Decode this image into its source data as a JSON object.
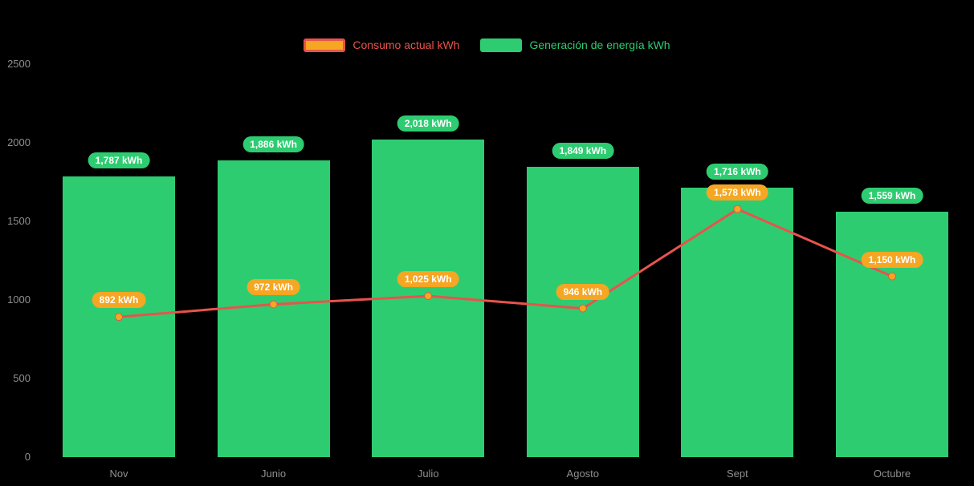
{
  "chart_data": {
    "type": "bar+line",
    "title": "",
    "categories": [
      "Nov",
      "Junio",
      "Julio",
      "Agosto",
      "Sept",
      "Octubre"
    ],
    "series": [
      {
        "name": "Consumo actual kWh",
        "type": "line",
        "values": [
          892,
          972,
          1025,
          946,
          1578,
          1150
        ],
        "labels": [
          "892 kWh",
          "972 kWh",
          "1,025 kWh",
          "946 kWh",
          "1,578 kWh",
          "1,150 kWh"
        ],
        "color": "#e8534b",
        "point_color": "#f5a623",
        "label_bg": "#f5a623",
        "label_text_color": "#ffffff",
        "swatch_fill": "#f5a623",
        "swatch_border": "#e8534b"
      },
      {
        "name": "Generación de energía kWh",
        "type": "bar",
        "values": [
          1787,
          1886,
          2018,
          1849,
          1716,
          1559
        ],
        "labels": [
          "1,787 kWh",
          "1,886 kWh",
          "2,018 kWh",
          "1,849 kWh",
          "1,716 kWh",
          "1,559 kWh"
        ],
        "color": "#2ecc71",
        "label_bg": "#2ecc71",
        "label_text_color": "#ffffff",
        "swatch_fill": "#2ecc71",
        "swatch_border": "#2ecc71"
      }
    ],
    "ylim": [
      0,
      2500
    ],
    "yticks": [
      0,
      500,
      1000,
      1500,
      2000,
      2500
    ],
    "legend_position": "top-center",
    "grid": false,
    "background": "#000000",
    "axis_text_color": "#8f8f8f"
  }
}
